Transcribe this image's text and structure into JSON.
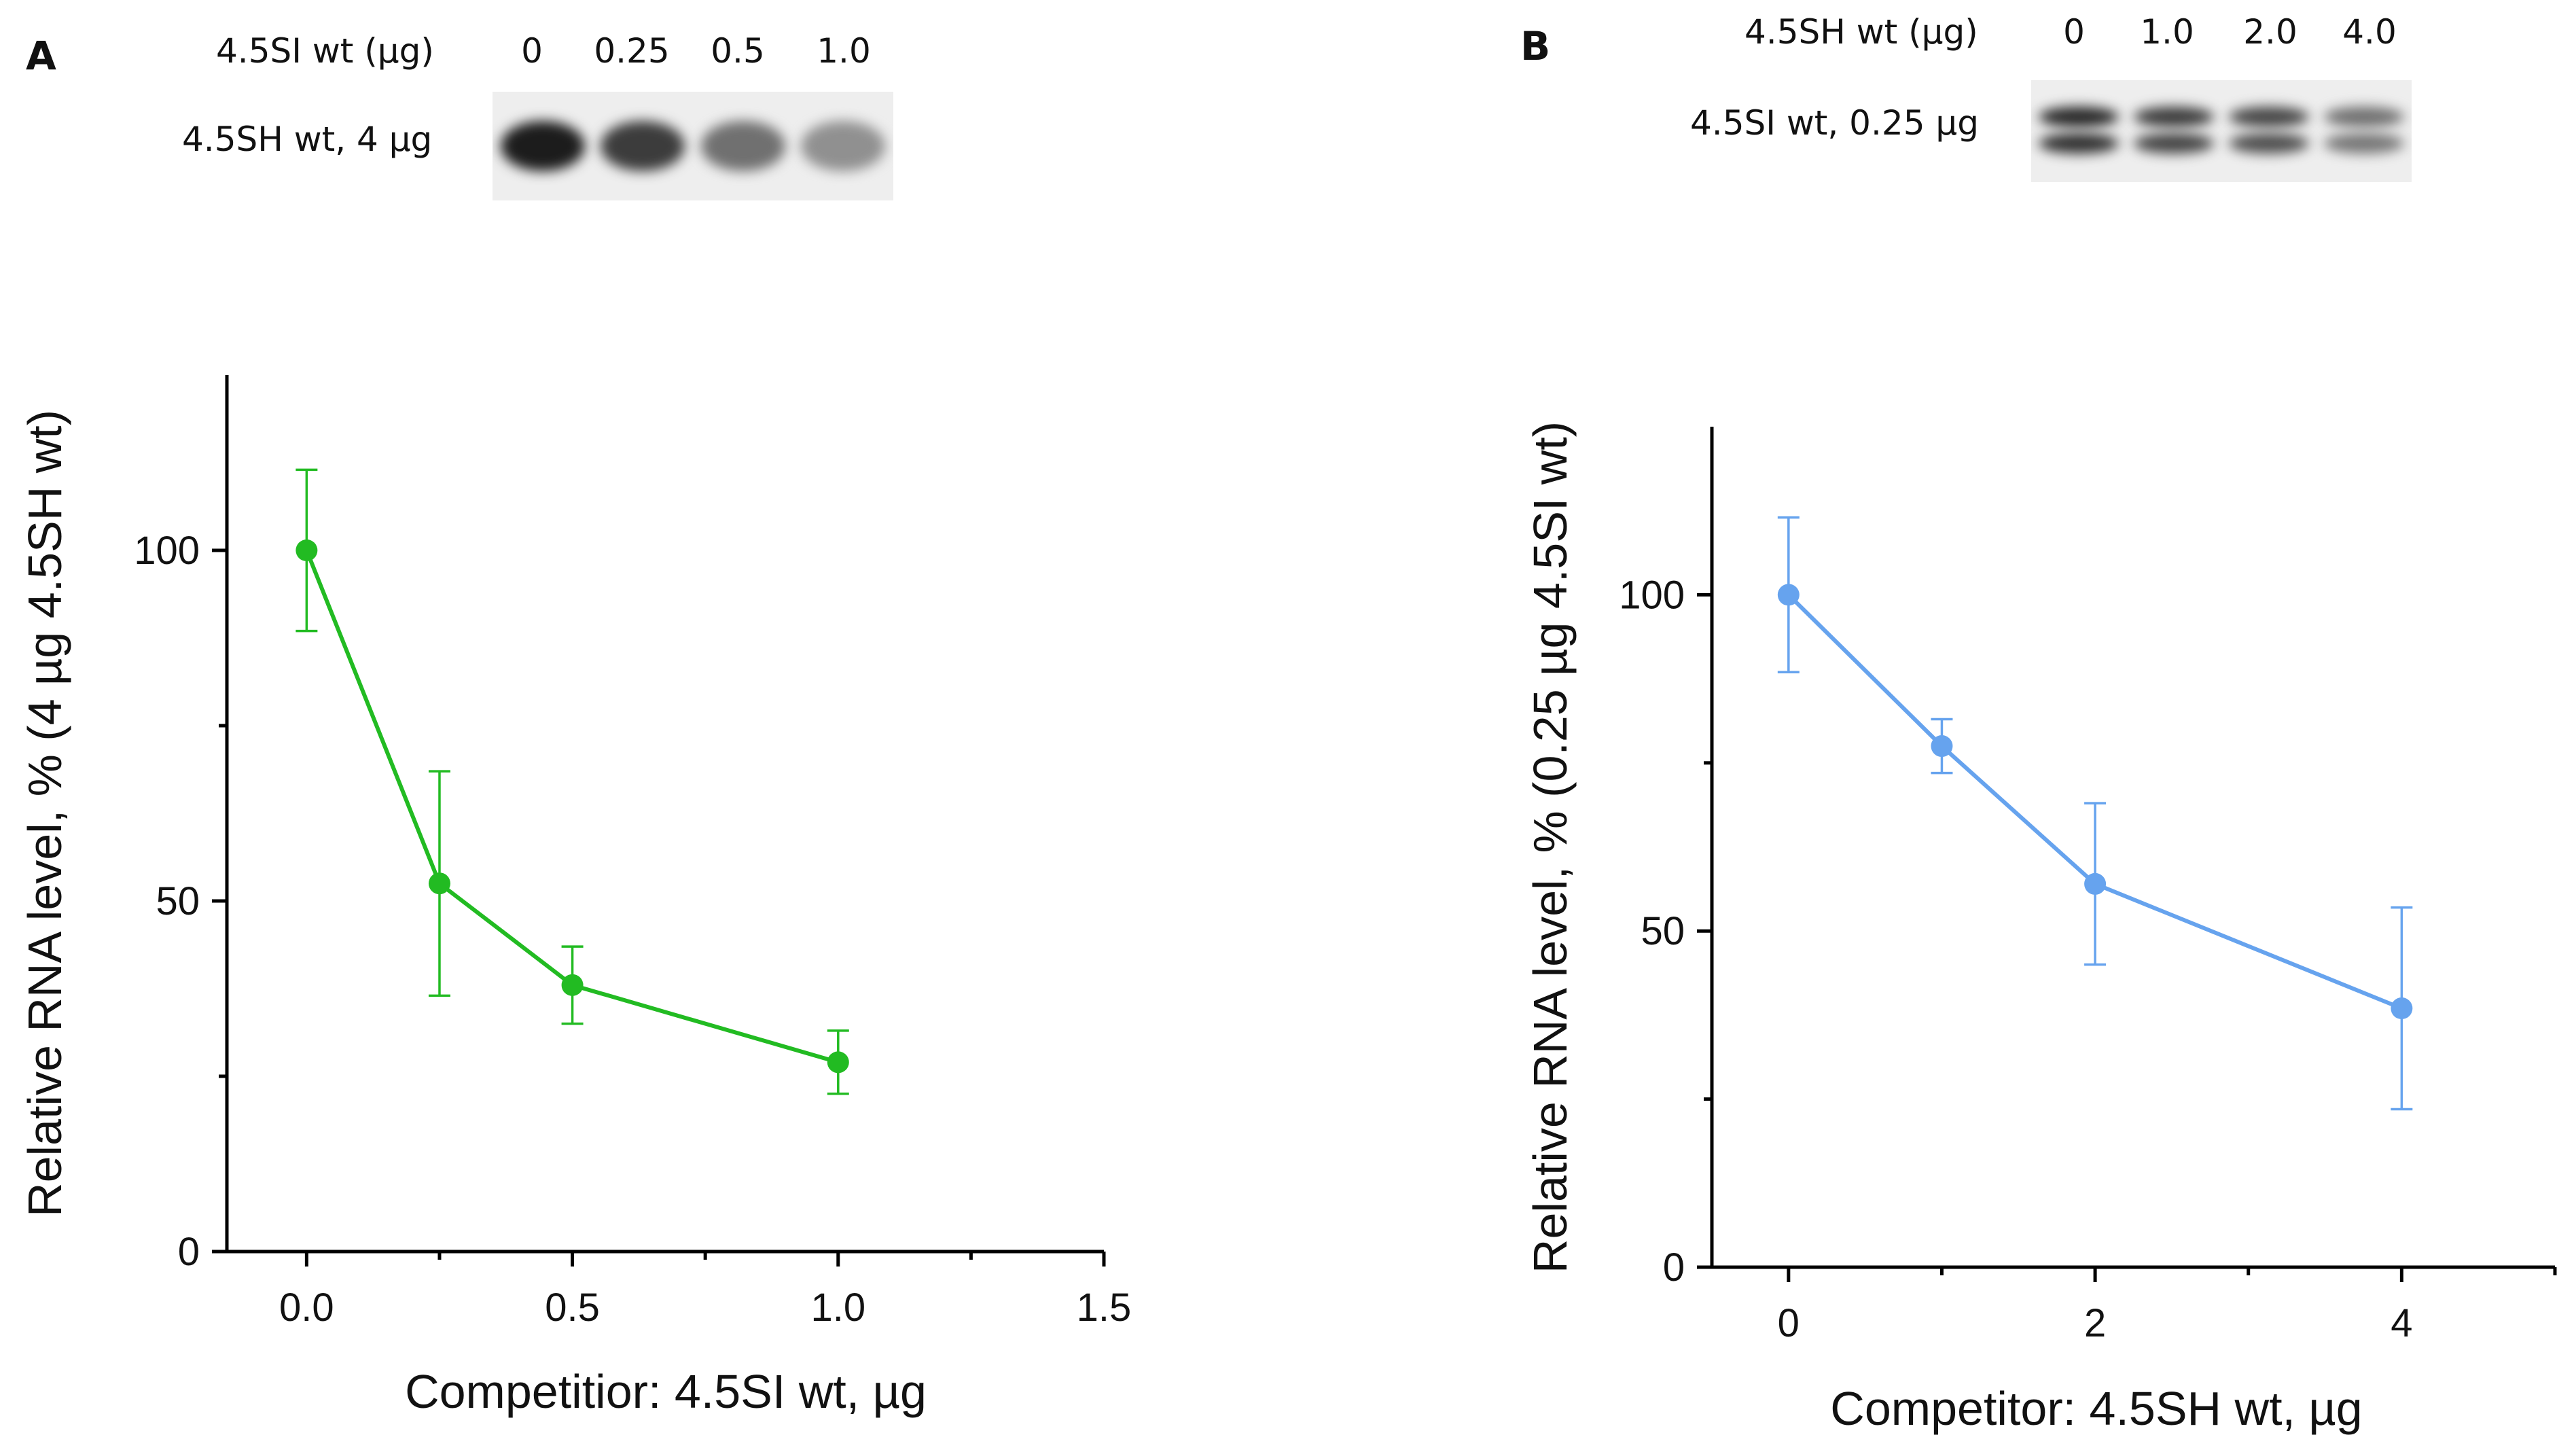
{
  "panel_a": {
    "label": "A",
    "gel": {
      "competitor_label": "4.5SI wt (µg)",
      "probe_label": "4.5SH wt, 4 µg",
      "lanes": [
        "0",
        "0.25",
        "0.5",
        "1.0"
      ],
      "band_intensity": [
        1.0,
        0.85,
        0.6,
        0.45
      ]
    }
  },
  "panel_b": {
    "label": "B",
    "gel": {
      "competitor_label": "4.5SH wt (µg)",
      "probe_label": "4.5SI wt, 0.25 µg",
      "lanes": [
        "0",
        "1.0",
        "2.0",
        "4.0"
      ],
      "band_intensity": [
        0.95,
        0.85,
        0.8,
        0.6
      ]
    }
  },
  "chart_data": [
    {
      "type": "line",
      "title": "",
      "xlabel": "Competitior: 4.5SI wt, µg",
      "ylabel": "Relative RNA level, % (4 µg 4.5SH wt)",
      "xlim": [
        -0.15,
        1.5
      ],
      "ylim": [
        0,
        125
      ],
      "xticks": [
        0.0,
        0.5,
        1.0,
        1.5
      ],
      "xtick_labels": [
        "0.0",
        "0.5",
        "1.0",
        "1.5"
      ],
      "xminor": [
        0.25,
        0.75,
        1.25
      ],
      "yticks": [
        0,
        50,
        100
      ],
      "ytick_labels": [
        "0",
        "50",
        "100"
      ],
      "yminor": [
        25,
        75
      ],
      "color": "#22bb22",
      "series": [
        {
          "name": "4.5SH wt",
          "x": [
            0,
            0.25,
            0.5,
            1.0
          ],
          "y": [
            100,
            52.5,
            38,
            27
          ],
          "err": [
            11.5,
            16,
            5.5,
            4.5
          ]
        }
      ]
    },
    {
      "type": "line",
      "title": "",
      "xlabel": "Competitor: 4.5SH wt, µg",
      "ylabel": "Relative RNA level, % (0.25 µg 4.5SI wt)",
      "xlim": [
        -0.5,
        5.0
      ],
      "ylim": [
        0,
        125
      ],
      "xticks": [
        0,
        2,
        4
      ],
      "xtick_labels": [
        "0",
        "2",
        "4"
      ],
      "xminor": [
        1,
        3,
        5
      ],
      "yticks": [
        0,
        50,
        100
      ],
      "ytick_labels": [
        "0",
        "50",
        "100"
      ],
      "yminor": [
        25,
        75
      ],
      "color": "#66a3ee",
      "series": [
        {
          "name": "4.5SI wt",
          "x": [
            0,
            1,
            2,
            4
          ],
          "y": [
            100,
            77.5,
            57,
            38.5
          ],
          "err": [
            11.5,
            4,
            12,
            15
          ]
        }
      ]
    }
  ]
}
